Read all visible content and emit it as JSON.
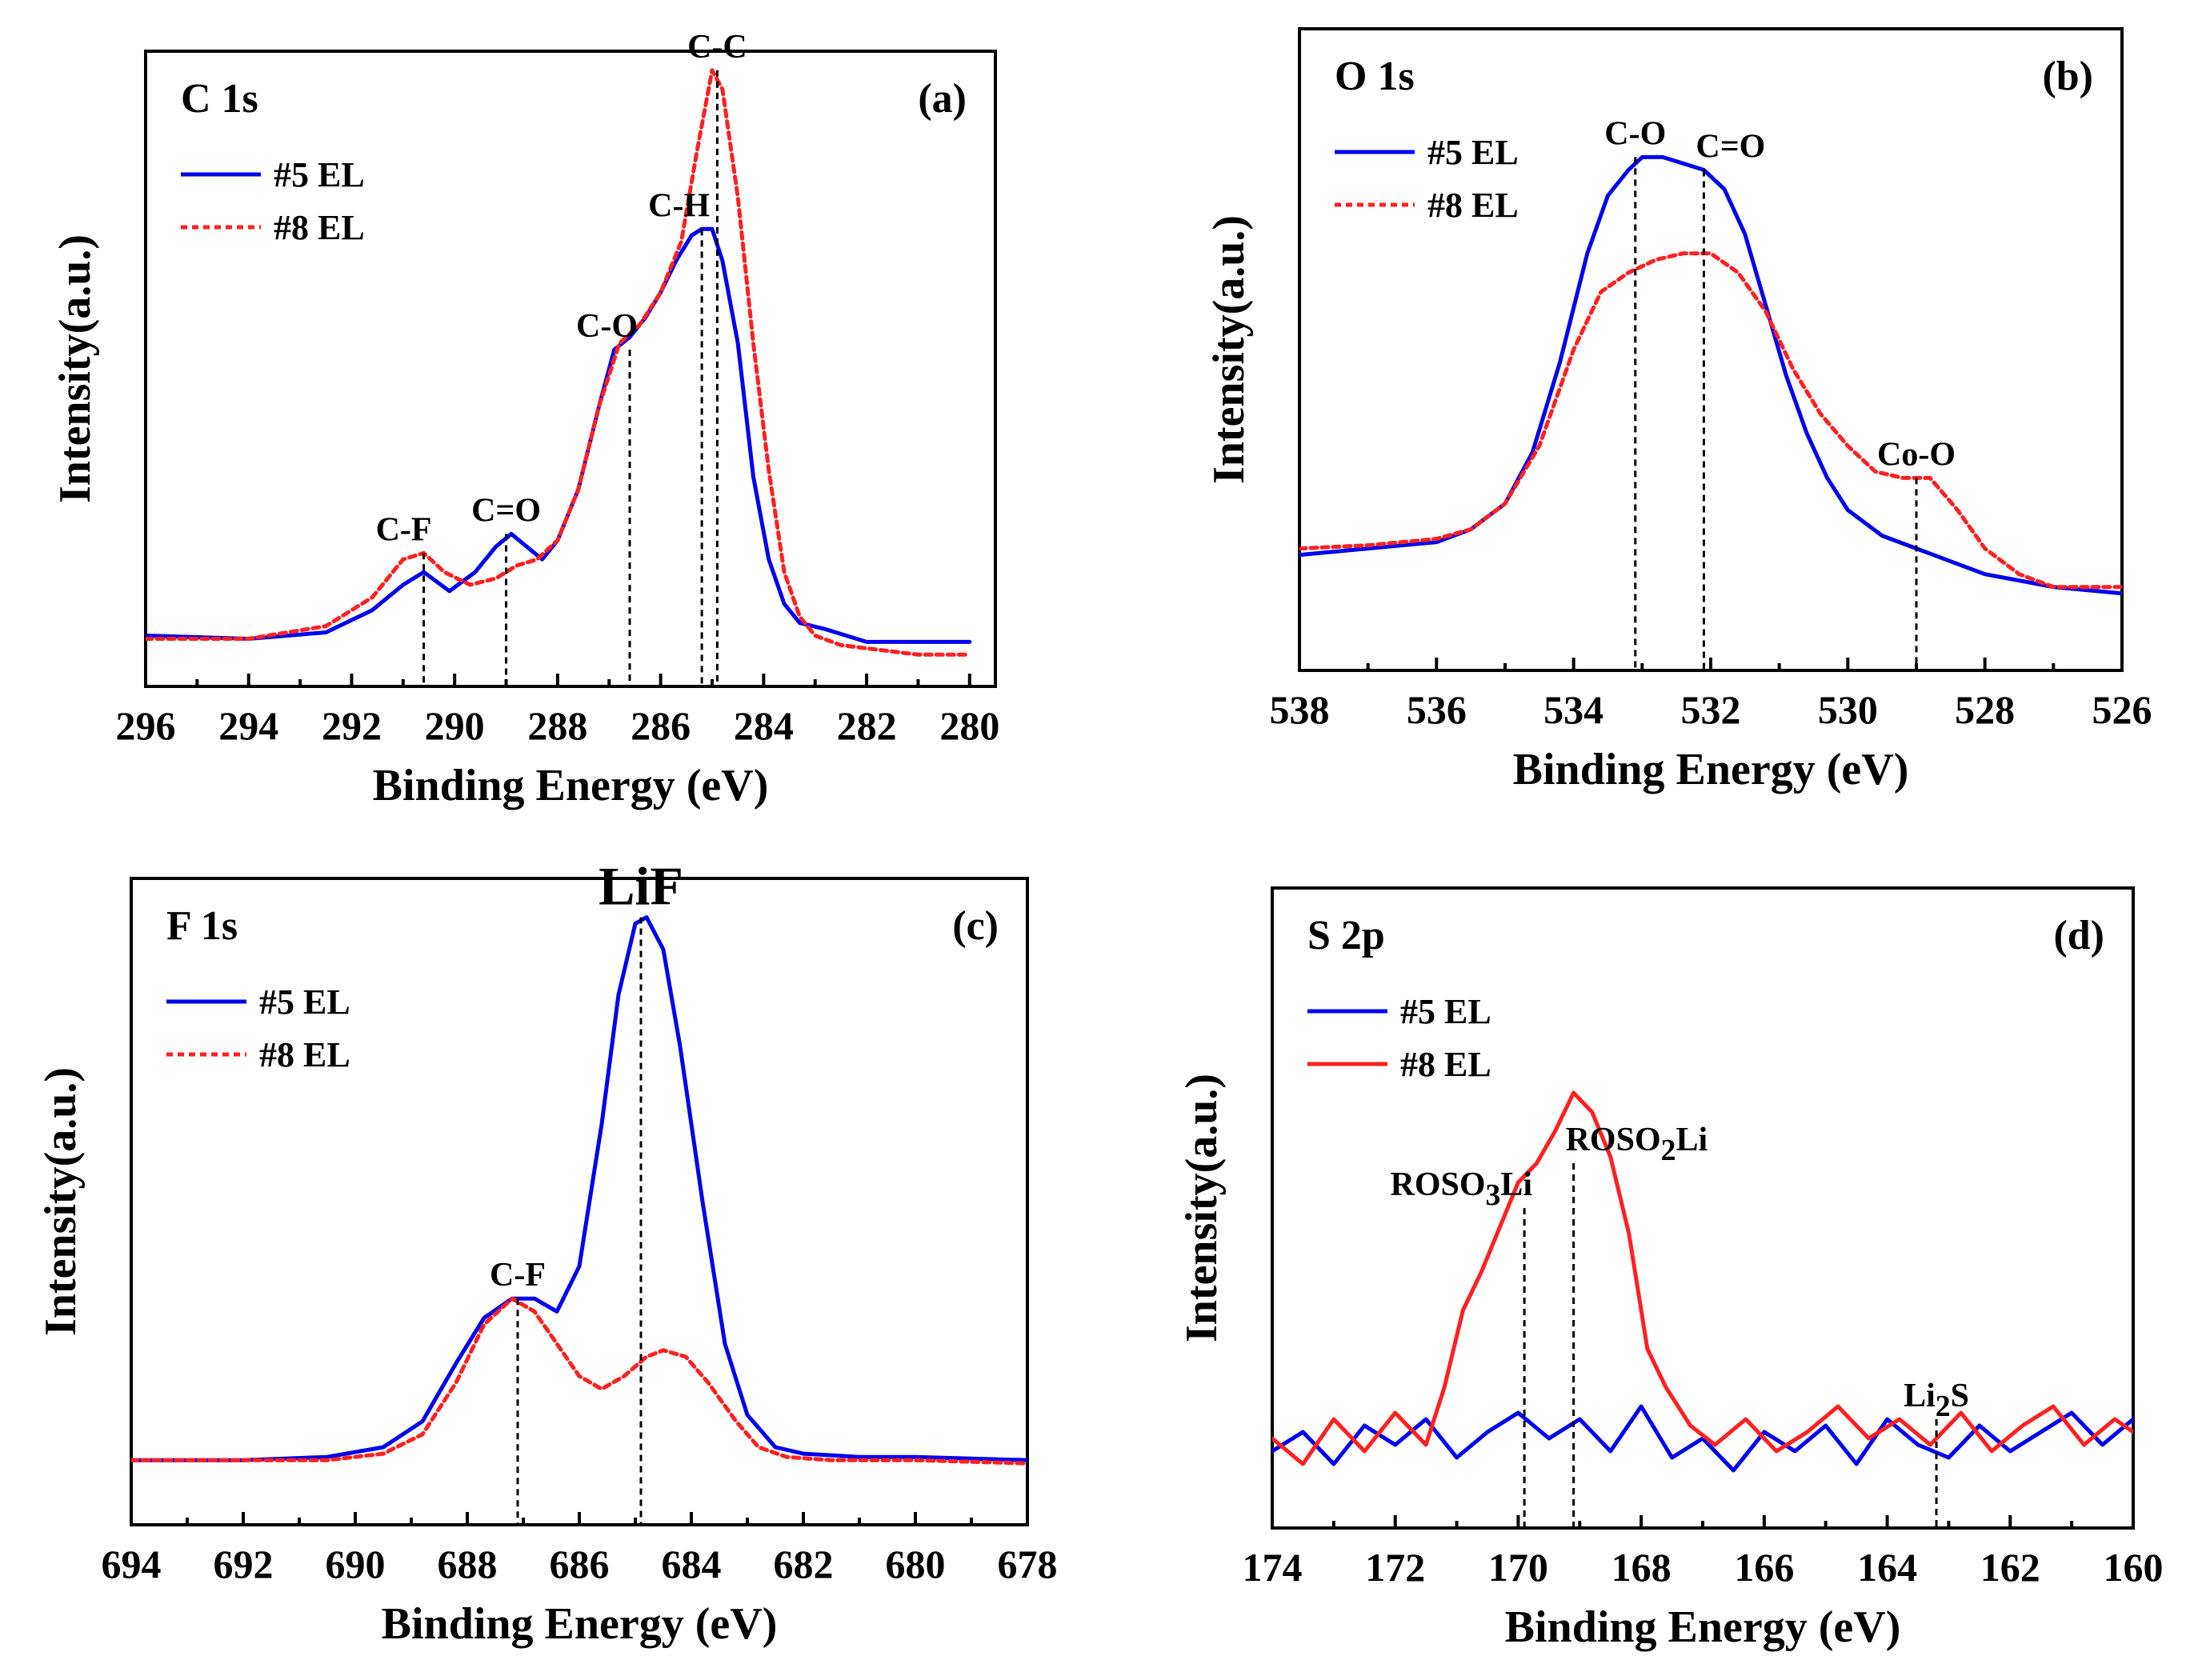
{
  "chart_data": [
    {
      "type": "line",
      "panel": "(a)",
      "title": "C 1s",
      "xlabel": "Binding Energy (eV)",
      "ylabel": "Intensity(a.u.)",
      "xlim": [
        296,
        279.5
      ],
      "ylim": [
        0,
        100
      ],
      "xticks": [
        296,
        294,
        292,
        290,
        288,
        286,
        284,
        282,
        280
      ],
      "legend": {
        "placement": "top-left",
        "entries": [
          "#5 EL",
          "#8 EL"
        ]
      },
      "series": [
        {
          "name": "#5 EL",
          "color": "#0000ee",
          "dash": "solid",
          "x": [
            296,
            294,
            292.5,
            291.6,
            291,
            290.6,
            290.1,
            289.6,
            289.2,
            288.9,
            288.6,
            288.3,
            288.0,
            287.6,
            287.2,
            286.9,
            286.6,
            286.3,
            286.0,
            285.7,
            285.4,
            285.2,
            285.0,
            284.8,
            284.5,
            284.2,
            283.9,
            283.6,
            283.3,
            282.8,
            282,
            281,
            280
          ],
          "y": [
            8,
            7.5,
            8.5,
            12,
            16,
            18,
            15,
            18,
            22,
            24,
            22,
            20,
            23,
            31,
            44,
            53,
            55,
            58,
            62,
            67,
            71,
            72,
            72,
            67,
            54,
            33,
            20,
            13,
            10,
            9,
            7,
            7,
            7
          ]
        },
        {
          "name": "#8 EL",
          "color": "#ff2020",
          "dash": "8 6",
          "x": [
            296,
            294,
            292.5,
            291.6,
            291,
            290.6,
            290.2,
            289.7,
            289.2,
            288.8,
            288.4,
            288.0,
            287.6,
            287.2,
            286.8,
            286.4,
            286.0,
            285.6,
            285.3,
            285.0,
            284.8,
            284.5,
            284.2,
            283.9,
            283.6,
            283.3,
            283.0,
            282.5,
            282,
            281,
            280
          ],
          "y": [
            7.5,
            7.5,
            9.5,
            14,
            20,
            21,
            18,
            16,
            17,
            19,
            20,
            23,
            31,
            44,
            54,
            57,
            62,
            70,
            84,
            97,
            94,
            77,
            54,
            34,
            18,
            11,
            8,
            6.5,
            6,
            5,
            5
          ]
        }
      ],
      "markers": [
        {
          "label": "C-F",
          "x": 290.6,
          "y": 21,
          "pos": "left"
        },
        {
          "label": "C=O",
          "x": 289.0,
          "y": 24,
          "pos": "center"
        },
        {
          "label": "C-O",
          "x": 286.6,
          "y": 53,
          "pos": "left"
        },
        {
          "label": "C-H",
          "x": 285.2,
          "y": 72,
          "pos": "left"
        },
        {
          "label": "C-C",
          "x": 284.9,
          "y": 97,
          "pos": "center"
        }
      ]
    },
    {
      "type": "line",
      "panel": "(b)",
      "title": "O 1s",
      "xlabel": "Binding Energy (eV)",
      "ylabel": "Intensity(a.u.)",
      "xlim": [
        538,
        526
      ],
      "ylim": [
        0,
        100
      ],
      "xticks": [
        538,
        536,
        534,
        532,
        530,
        528,
        526
      ],
      "legend": {
        "placement": "top-left",
        "entries": [
          "#5 EL",
          "#8 EL"
        ]
      },
      "series": [
        {
          "name": "#5 EL",
          "color": "#0000ee",
          "dash": "solid",
          "x": [
            538,
            537,
            536,
            535.5,
            535,
            534.6,
            534.2,
            533.8,
            533.5,
            533.2,
            533.0,
            532.7,
            532.4,
            532.1,
            531.8,
            531.5,
            531.2,
            530.9,
            530.6,
            530.3,
            530.0,
            529.5,
            529.0,
            528.5,
            528.0,
            527.0,
            526
          ],
          "y": [
            18,
            19,
            20,
            22,
            26,
            34,
            48,
            65,
            74,
            78,
            80,
            80,
            79,
            78,
            75,
            68,
            57,
            46,
            37,
            30,
            25,
            21,
            19,
            17,
            15,
            13,
            12
          ]
        },
        {
          "name": "#8 EL",
          "color": "#ff2020",
          "dash": "8 6",
          "x": [
            538,
            537,
            536,
            535.5,
            535,
            534.5,
            534.0,
            533.6,
            533.2,
            532.8,
            532.4,
            532.0,
            531.6,
            531.2,
            530.8,
            530.4,
            530.0,
            529.6,
            529.2,
            528.8,
            528.4,
            528.0,
            527.5,
            527.0,
            526
          ],
          "y": [
            19,
            19.5,
            20.5,
            22,
            26,
            35,
            50,
            59,
            62,
            64,
            65,
            65,
            62,
            56,
            47,
            40,
            35,
            31,
            30,
            30,
            25,
            19,
            15,
            13,
            13
          ]
        }
      ],
      "markers": [
        {
          "label": "C-O",
          "x": 533.1,
          "y": 80,
          "pos": "center"
        },
        {
          "label": "C=O",
          "x": 532.1,
          "y": 78,
          "pos": "right"
        },
        {
          "label": "Co-O",
          "x": 529.0,
          "y": 30,
          "pos": "center"
        }
      ]
    },
    {
      "type": "line",
      "panel": "(c)",
      "title": "F 1s",
      "xlabel": "Binding Energy (eV)",
      "ylabel": "Intensity(a.u.)",
      "xlim": [
        694,
        678
      ],
      "ylim": [
        0,
        100
      ],
      "xticks": [
        694,
        692,
        690,
        688,
        686,
        684,
        682,
        680,
        678
      ],
      "legend": {
        "placement": "top-left",
        "entries": [
          "#5 EL",
          "#8 EL"
        ]
      },
      "series": [
        {
          "name": "#5 EL",
          "color": "#0000ee",
          "dash": "solid",
          "x": [
            694,
            692,
            690.5,
            689.5,
            688.8,
            688.2,
            687.7,
            687.2,
            686.8,
            686.4,
            686.0,
            685.6,
            685.3,
            685.0,
            684.8,
            684.5,
            684.2,
            683.8,
            683.4,
            683.0,
            682.5,
            682,
            681,
            680,
            678
          ],
          "y": [
            10,
            10,
            10.5,
            12,
            16,
            25,
            32,
            35,
            35,
            33,
            40,
            62,
            82,
            93,
            94,
            89,
            74,
            50,
            28,
            17,
            12,
            11,
            10.5,
            10.5,
            10
          ]
        },
        {
          "name": "#8 EL",
          "color": "#ff2020",
          "dash": "8 6",
          "x": [
            694,
            692,
            690.5,
            689.5,
            688.8,
            688.2,
            687.7,
            687.2,
            686.8,
            686.4,
            686.0,
            685.6,
            685.2,
            684.8,
            684.5,
            684.1,
            683.7,
            683.2,
            682.8,
            682.3,
            681.5,
            680,
            678
          ],
          "y": [
            10,
            10,
            10,
            11,
            14,
            22,
            31,
            35,
            33,
            28,
            23,
            21,
            23,
            26,
            27,
            26,
            22,
            16,
            12,
            10.5,
            10,
            10,
            9.5
          ]
        }
      ],
      "markers": [
        {
          "label": "C-F",
          "x": 687.1,
          "y": 35,
          "pos": "center"
        },
        {
          "label": "LiF",
          "x": 684.9,
          "y": 94,
          "pos": "center",
          "large": true
        }
      ]
    },
    {
      "type": "line",
      "panel": "(d)",
      "title": "S 2p",
      "xlabel": "Binding Energy (eV)",
      "ylabel": "Intensity(a.u.)",
      "xlim": [
        174,
        160
      ],
      "ylim": [
        0,
        100
      ],
      "xticks": [
        174,
        172,
        170,
        168,
        166,
        164,
        162,
        160
      ],
      "legend": {
        "placement": "top-left",
        "entries": [
          "#5 EL",
          "#8 EL"
        ]
      },
      "series": [
        {
          "name": "#5 EL",
          "color": "#0000ee",
          "dash": "solid",
          "x": [
            174,
            173.5,
            173,
            172.5,
            172,
            171.5,
            171,
            170.5,
            170,
            169.5,
            169,
            168.5,
            168,
            167.5,
            167,
            166.5,
            166,
            165.5,
            165,
            164.5,
            164,
            163.5,
            163,
            162.5,
            162,
            161.5,
            161,
            160.5,
            160
          ],
          "y": [
            12,
            15,
            10,
            16,
            13,
            17,
            11,
            15,
            18,
            14,
            17,
            12,
            19,
            11,
            14,
            9,
            15,
            12,
            16,
            10,
            17,
            13,
            11,
            16,
            12,
            15,
            18,
            13,
            17
          ]
        },
        {
          "name": "#8 EL",
          "color": "#ff2020",
          "dash": "solid",
          "x": [
            174,
            173.5,
            173,
            172.5,
            172,
            171.5,
            171.2,
            170.9,
            170.6,
            170.3,
            170.0,
            169.7,
            169.4,
            169.1,
            168.8,
            168.5,
            168.2,
            167.9,
            167.6,
            167.2,
            166.8,
            166.3,
            165.8,
            165.3,
            164.8,
            164.3,
            163.8,
            163.3,
            162.8,
            162.3,
            161.8,
            161.3,
            160.8,
            160.3,
            160
          ],
          "y": [
            14,
            10,
            17,
            12,
            18,
            13,
            22,
            34,
            40,
            47,
            54,
            57,
            62,
            68,
            65,
            58,
            46,
            28,
            22,
            16,
            13,
            17,
            12,
            15,
            19,
            14,
            17,
            13,
            18,
            12,
            16,
            19,
            13,
            17,
            15
          ]
        }
      ],
      "markers": [
        {
          "label": "ROSO",
          "sub": "3",
          "tail": "Li",
          "x": 169.9,
          "y": 50,
          "pos": "left"
        },
        {
          "label": "ROSO",
          "sub": "2",
          "tail": "Li",
          "x": 169.1,
          "y": 57,
          "pos": "right"
        },
        {
          "label": "Li",
          "sub": "2",
          "tail": "S",
          "x": 163.2,
          "y": 17,
          "pos": "center"
        }
      ]
    }
  ]
}
